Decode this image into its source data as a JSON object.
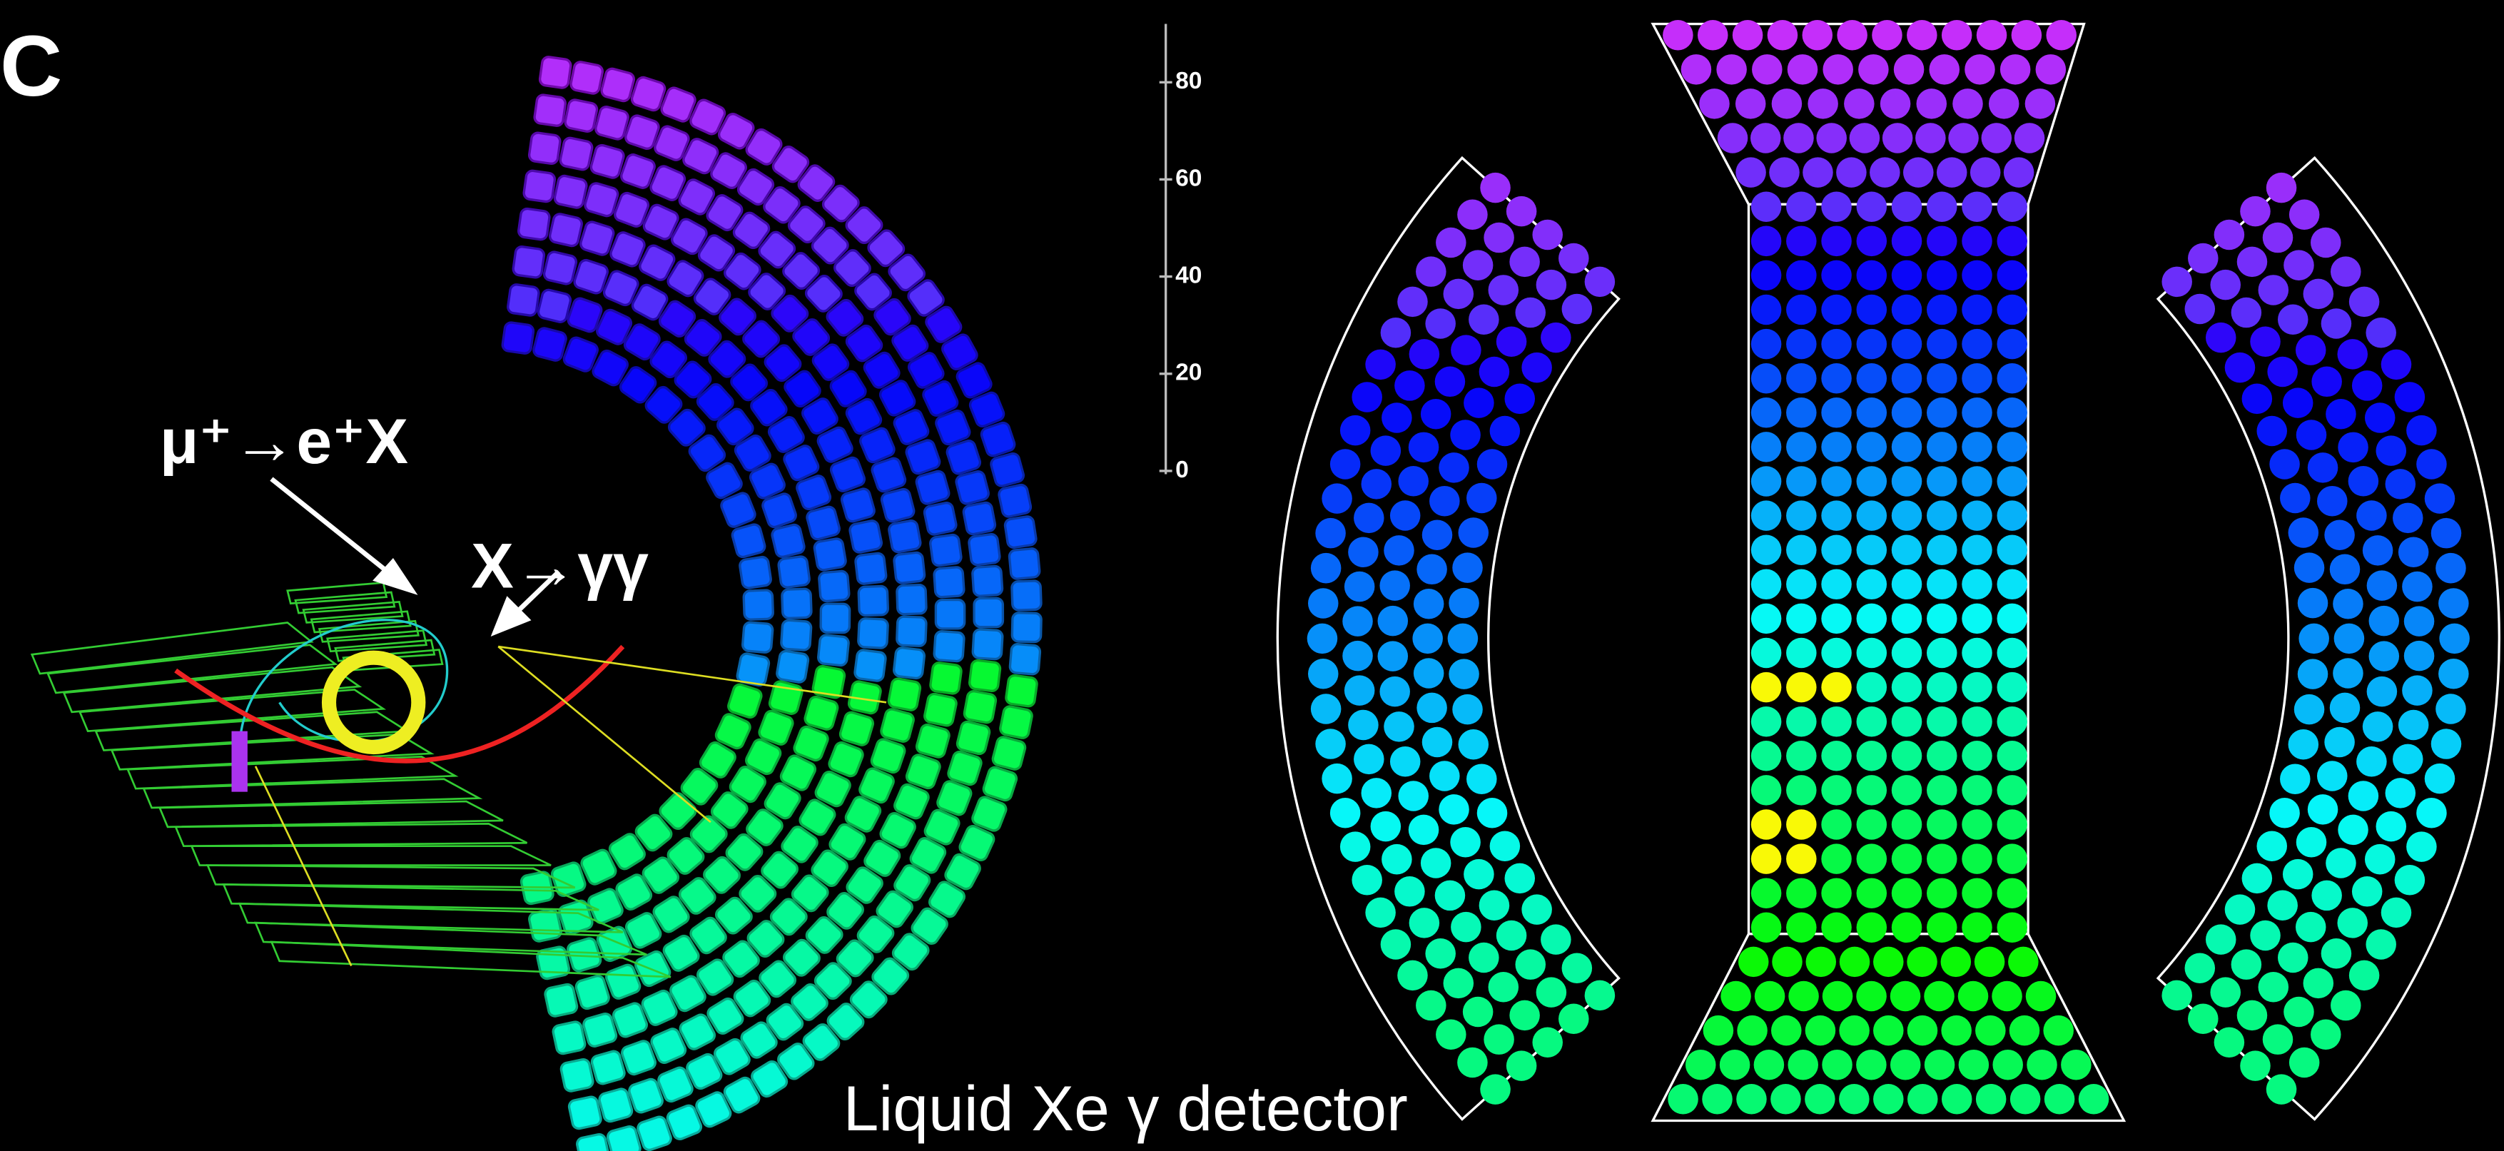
{
  "panel_label": "C",
  "annotations": {
    "decay_muon": "μ⁺→e⁺X",
    "decay_x": "X→γγ",
    "detector": "Liquid Xe γ detector"
  },
  "color_scale": {
    "lim": [
      0,
      92
    ],
    "ticks": [
      80,
      60,
      40,
      20,
      0
    ]
  }
}
